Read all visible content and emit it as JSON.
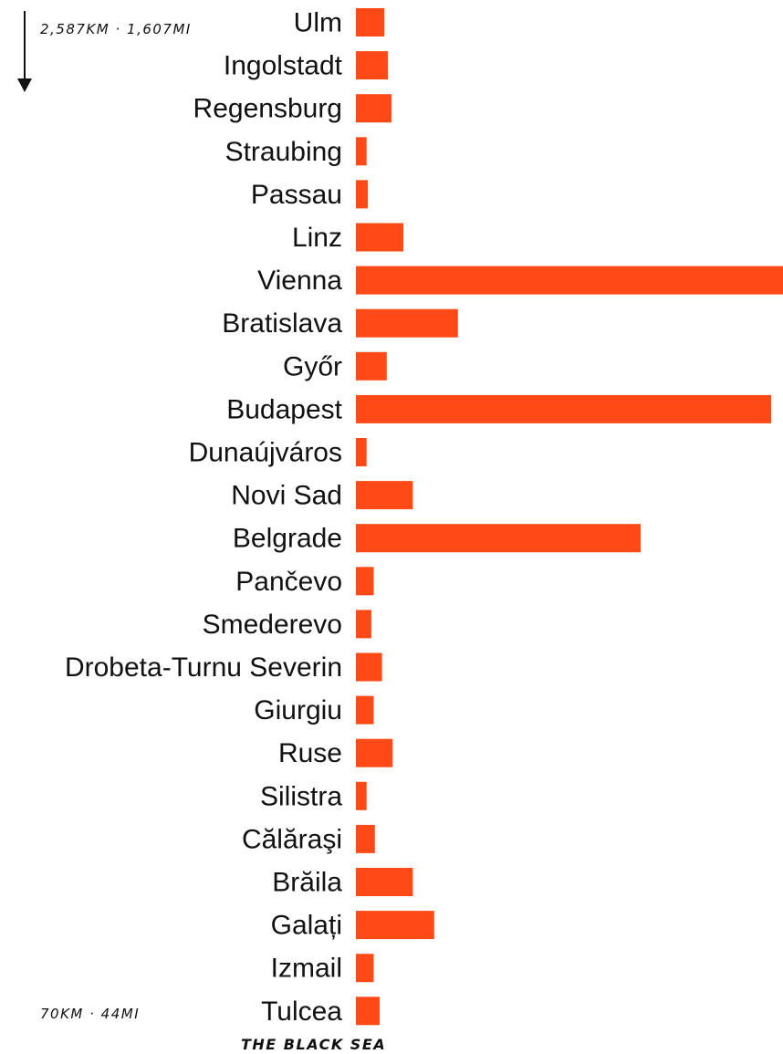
{
  "chart_data": {
    "type": "bar",
    "orientation": "horizontal",
    "categories": [
      "Ulm",
      "Ingolstadt",
      "Regensburg",
      "Straubing",
      "Passau",
      "Linz",
      "Vienna",
      "Bratislava",
      "Győr",
      "Budapest",
      "Dunaújváros",
      "Novi Sad",
      "Belgrade",
      "Pančevo",
      "Smederevo",
      "Drobeta-Turnu Severin",
      "Giurgiu",
      "Ruse",
      "Silistra",
      "Călăraşi",
      "Brăila",
      "Galați",
      "Izmail",
      "Tulcea"
    ],
    "values": [
      120000,
      135000,
      150000,
      45000,
      50000,
      200000,
      1800000,
      430000,
      130000,
      1750000,
      45000,
      240000,
      1200000,
      75000,
      65000,
      110000,
      75000,
      155000,
      45000,
      80000,
      240000,
      330000,
      75000,
      100000
    ],
    "bar_color": "#ff4a17",
    "xlim": [
      0,
      1800000
    ],
    "annotations": {
      "top_distance": "2,587KM · 1,607MI",
      "bottom_distance": "70KM · 44MI",
      "end_label": "THE BLACK SEA"
    }
  }
}
